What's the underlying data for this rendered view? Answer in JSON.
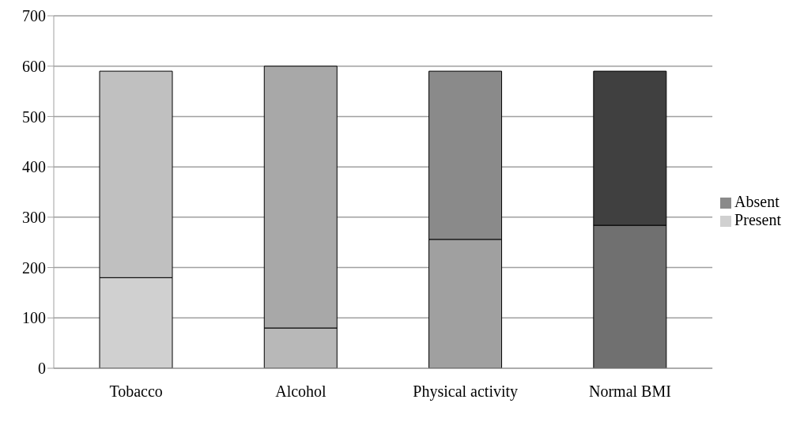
{
  "chart_data": {
    "type": "bar",
    "stacked": true,
    "categories": [
      "Tobacco",
      "Alcohol",
      "Physical activity",
      "Normal BMI"
    ],
    "series": [
      {
        "name": "Present",
        "color": "#d0d0d0",
        "colors": [
          "#d0d0d0",
          "#b8b8b8",
          "#a0a0a0",
          "#707070"
        ],
        "values": [
          180,
          80,
          256,
          284
        ]
      },
      {
        "name": "Absent",
        "color": "#8a8a8a",
        "colors": [
          "#c0c0c0",
          "#a8a8a8",
          "#8a8a8a",
          "#404040"
        ],
        "values": [
          410,
          520,
          334,
          306
        ]
      }
    ],
    "ylim": [
      0,
      700
    ],
    "yticks": [
      0,
      100,
      200,
      300,
      400,
      500,
      600,
      700
    ],
    "grid": "y",
    "legend": "right"
  }
}
